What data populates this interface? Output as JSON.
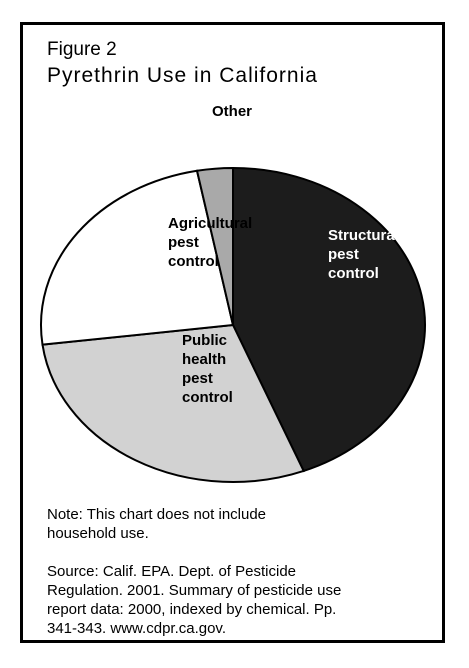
{
  "chart_data": {
    "type": "pie",
    "title": "Figure 2",
    "subtitle": "Pyrethrin Use in California",
    "categories": [
      "Structural pest control",
      "Public health pest control",
      "Agricultural pest control",
      "Other"
    ],
    "values": [
      44,
      29,
      24,
      3
    ],
    "colors": [
      "#1c1c1c",
      "#d2d2d2",
      "#ffffff",
      "#a9a9a9"
    ],
    "label_colors": [
      "#ffffff",
      "#000000",
      "#000000",
      "#000000"
    ],
    "note": "Note: This chart does not include household use.",
    "source": "Source: Calif. EPA. Dept. of Pesticide Regulation. 2001. Summary of pesticide use report data: 2000, indexed by chemical. Pp. 341-343. www.cdpr.ca.gov."
  }
}
